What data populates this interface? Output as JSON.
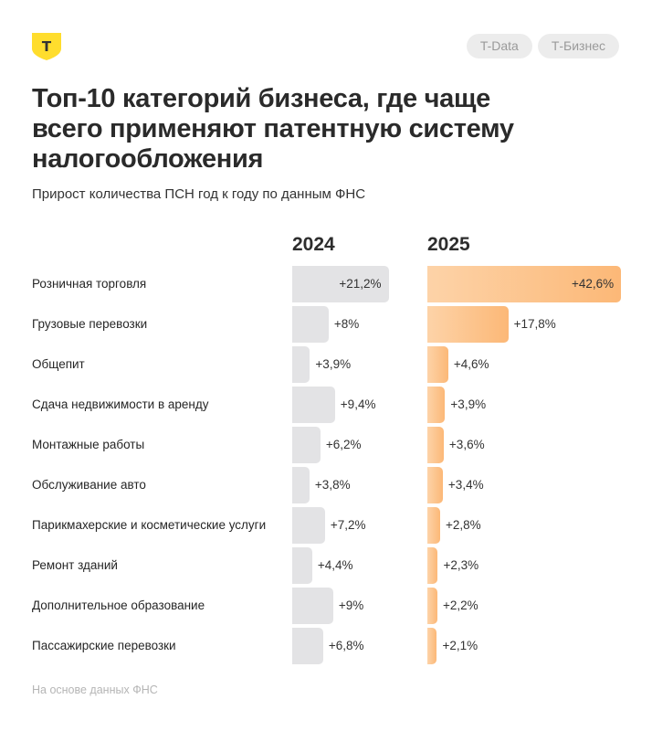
{
  "header": {
    "logo_icon": "t-bank-shield-icon",
    "logo_letter": "Т",
    "tags": [
      "T-Data",
      "Т-Бизнес"
    ]
  },
  "title": "Топ-10 категорий бизнеса, где чаще всего применяют патентную систему налогообложения",
  "subtitle": "Прирост количества ПСН год к году по данным ФНС",
  "footnote": "На основе данных ФНС",
  "colors": {
    "bar_2024": "#e3e3e5",
    "bar_2025_start": "#fdd3a8",
    "bar_2025_end": "#fcb877",
    "logo_yellow": "#ffdd2d"
  },
  "chart_data": {
    "type": "bar",
    "orientation": "horizontal",
    "title": "Топ-10 категорий бизнеса, где чаще всего применяют патентную систему налогообложения",
    "subtitle": "Прирост количества ПСН год к году по данным ФНС",
    "xlabel": "",
    "ylabel": "",
    "unit": "%",
    "categories": [
      "Розничная торговля",
      "Грузовые перевозки",
      "Общепит",
      "Сдача недвижимости в аренду",
      "Монтажные работы",
      "Обслуживание авто",
      "Парикмахерские и косметические услуги",
      "Ремонт зданий",
      "Дополнительное образование",
      "Пассажирские перевозки"
    ],
    "series": [
      {
        "name": "2024",
        "values": [
          21.2,
          8,
          3.9,
          9.4,
          6.2,
          3.8,
          7.2,
          4.4,
          9,
          6.8
        ],
        "labels": [
          "+21,2%",
          "+8%",
          "+3,9%",
          "+9,4%",
          "+6,2%",
          "+3,8%",
          "+7,2%",
          "+4,4%",
          "+9%",
          "+6,8%"
        ]
      },
      {
        "name": "2025",
        "values": [
          42.6,
          17.8,
          4.6,
          3.9,
          3.6,
          3.4,
          2.8,
          2.3,
          2.2,
          2.1
        ],
        "labels": [
          "+42,6%",
          "+17,8%",
          "+4,6%",
          "+3,9%",
          "+3,6%",
          "+3,4%",
          "+2,8%",
          "+2,3%",
          "+2,2%",
          "+2,1%"
        ]
      }
    ],
    "xlim": [
      0,
      42.6
    ],
    "grid": false,
    "legend": "column-headers-top"
  }
}
